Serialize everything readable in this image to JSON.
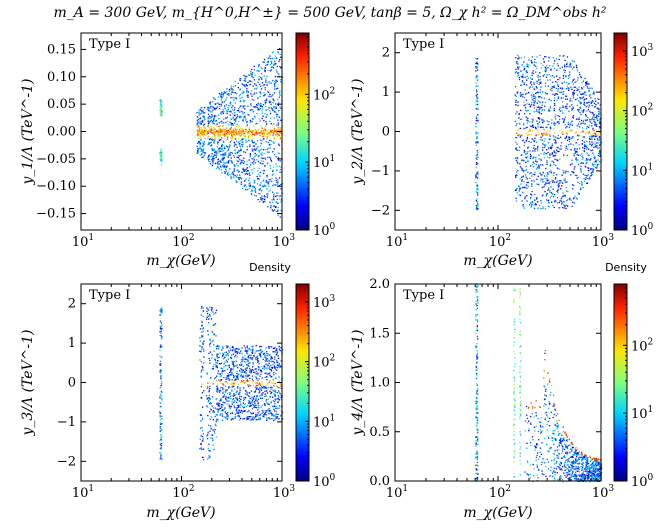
{
  "title": "m_A = 300 GeV,  m_{H^0,H^±} = 500 GeV,  tanβ = 5,  Ω_χ h² = Ω_DM^obs h²",
  "colorbar_label": "Density",
  "colormap": [
    "#00007f",
    "#0000ff",
    "#0080ff",
    "#00e5ff",
    "#7fff7f",
    "#ffe600",
    "#ff7f00",
    "#ff0000",
    "#7f0000"
  ],
  "chart_data": [
    {
      "id": "y1",
      "type": "scatter-density",
      "annotation": "Type I",
      "xlabel": "m_χ(GeV)",
      "ylabel": "y_1/Λ (TeV^-1)",
      "xscale": "log",
      "xlim": [
        10,
        1000
      ],
      "ylim": [
        -0.18,
        0.18
      ],
      "yticks": [
        -0.15,
        -0.1,
        -0.05,
        0.0,
        0.05,
        0.1,
        0.15
      ],
      "ytick_labels": [
        "−0.15",
        "−0.10",
        "−0.05",
        "0.00",
        "0.05",
        "0.10",
        "0.15"
      ],
      "xtick_labels": [
        "10^1",
        "10^2",
        "10^3"
      ],
      "colorbar": {
        "scale": "log",
        "range": [
          1,
          800
        ],
        "tick_labels": [
          "10^0",
          "10^1",
          "10^2"
        ]
      }
    },
    {
      "id": "y2",
      "type": "scatter-density",
      "annotation": "Type I",
      "xlabel": "m_χ(GeV)",
      "ylabel": "y_2/Λ (TeV^-1)",
      "xscale": "log",
      "xlim": [
        10,
        1000
      ],
      "ylim": [
        -2.5,
        2.5
      ],
      "yticks": [
        -2,
        -1,
        0,
        1,
        2
      ],
      "ytick_labels": [
        "−2",
        "−1",
        "0",
        "1",
        "2"
      ],
      "xtick_labels": [
        "10^1",
        "10^2",
        "10^3"
      ],
      "colorbar": {
        "scale": "log",
        "range": [
          1,
          2000
        ],
        "tick_labels": [
          "10^0",
          "10^1",
          "10^2",
          "10^3"
        ]
      }
    },
    {
      "id": "y3",
      "type": "scatter-density",
      "annotation": "Type I",
      "xlabel": "m_χ(GeV)",
      "ylabel": "y_3/Λ (TeV^-1)",
      "xscale": "log",
      "xlim": [
        10,
        1000
      ],
      "ylim": [
        -2.5,
        2.5
      ],
      "yticks": [
        -2,
        -1,
        0,
        1,
        2
      ],
      "ytick_labels": [
        "−2",
        "−1",
        "0",
        "1",
        "2"
      ],
      "xtick_labels": [
        "10^1",
        "10^2",
        "10^3"
      ],
      "colorbar": {
        "scale": "log",
        "range": [
          1,
          2000
        ],
        "tick_labels": [
          "10^0",
          "10^1",
          "10^2",
          "10^3"
        ]
      }
    },
    {
      "id": "y4",
      "type": "scatter-density",
      "annotation": "Type I",
      "xlabel": "m_χ(GeV)",
      "ylabel": "y_4/Λ (TeV^-1)",
      "xscale": "log",
      "xlim": [
        10,
        1000
      ],
      "ylim": [
        0,
        2
      ],
      "yticks": [
        0.0,
        0.5,
        1.0,
        1.5,
        2.0
      ],
      "ytick_labels": [
        "0.0",
        "0.5",
        "1.0",
        "1.5",
        "2.0"
      ],
      "xtick_labels": [
        "10^1",
        "10^2",
        "10^3"
      ],
      "colorbar": {
        "scale": "log",
        "range": [
          1,
          800
        ],
        "tick_labels": [
          "10^0",
          "10^1",
          "10^2"
        ]
      }
    }
  ]
}
